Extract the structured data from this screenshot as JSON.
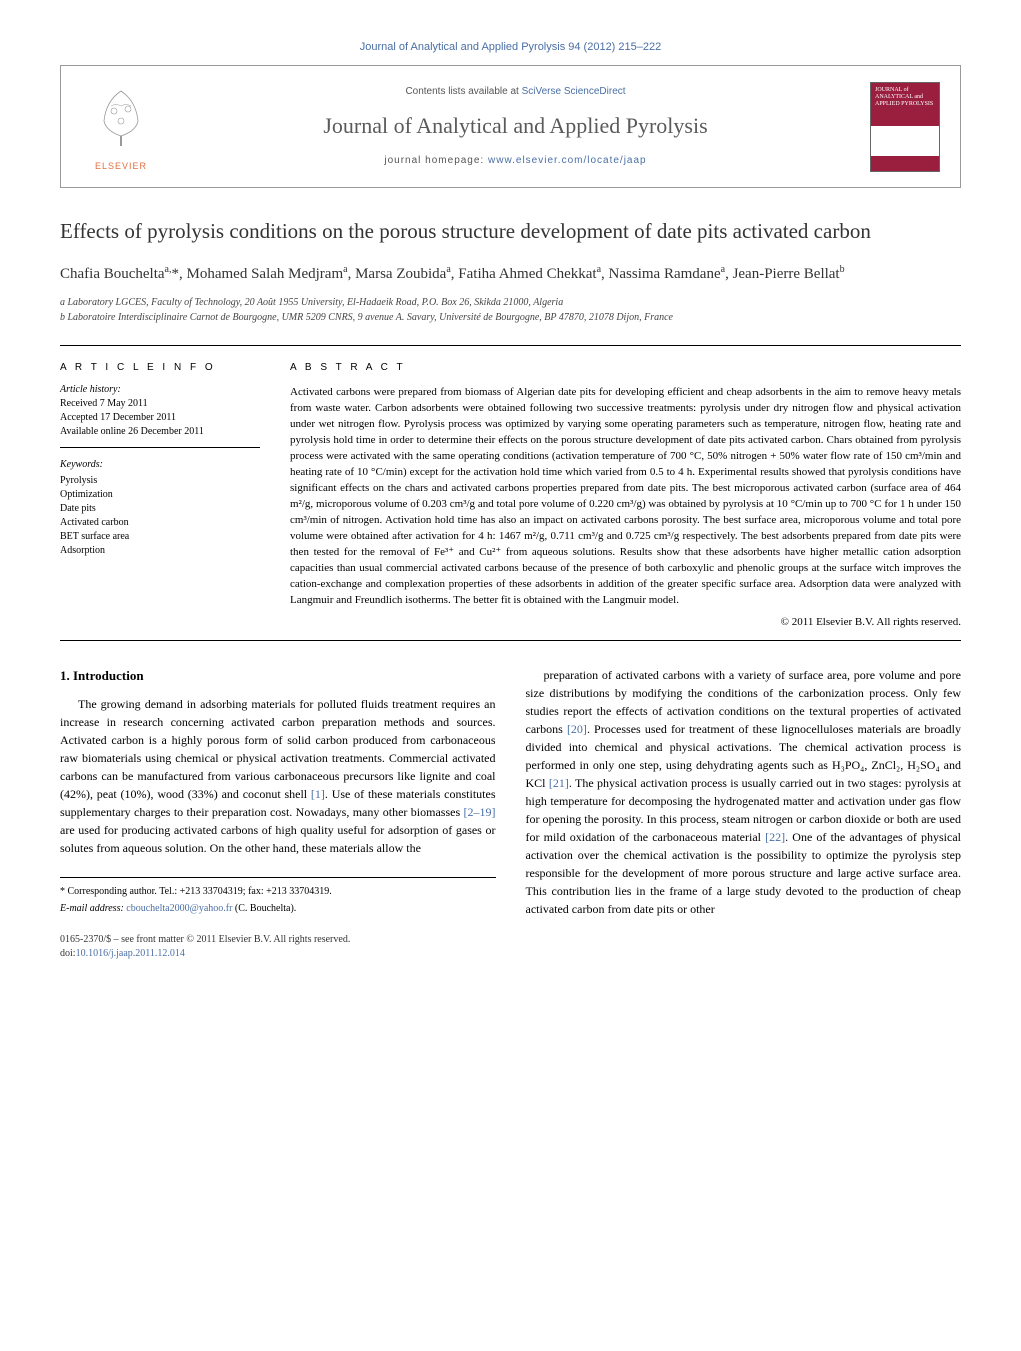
{
  "header": {
    "top_link": "Journal of Analytical and Applied Pyrolysis 94 (2012) 215–222",
    "contents_prefix": "Contents lists available at ",
    "contents_link": "SciVerse ScienceDirect",
    "journal_title": "Journal of Analytical and Applied Pyrolysis",
    "homepage_prefix": "journal homepage: ",
    "homepage_url": "www.elsevier.com/locate/jaap",
    "publisher_brand": "ELSEVIER",
    "cover_text": "JOURNAL of ANALYTICAL and APPLIED PYROLYSIS"
  },
  "colors": {
    "link": "#4a6fa5",
    "brand": "#e07040",
    "cover_bg": "#9a1f3f",
    "text": "#000000",
    "muted": "#555555"
  },
  "article": {
    "title": "Effects of pyrolysis conditions on the porous structure development of date pits activated carbon",
    "authors_html": "Chafia Bouchelta<sup>a,</sup>*, Mohamed Salah Medjram<sup>a</sup>, Marsa Zoubida<sup>a</sup>, Fatiha Ahmed Chekkat<sup>a</sup>, Nassima Ramdane<sup>a</sup>, Jean-Pierre Bellat<sup>b</sup>",
    "affiliations": [
      "a Laboratory LGCES, Faculty of Technology, 20 Août 1955 University, El-Hadaeik Road, P.O. Box 26, Skikda 21000, Algeria",
      "b Laboratoire Interdisciplinaire Carnot de Bourgogne, UMR 5209 CNRS, 9 avenue A. Savary, Université de Bourgogne, BP 47870, 21078 Dijon, France"
    ]
  },
  "info": {
    "heading": "A R T I C L E  I N F O",
    "history_label": "Article history:",
    "history": [
      "Received 7 May 2011",
      "Accepted 17 December 2011",
      "Available online 26 December 2011"
    ],
    "keywords_label": "Keywords:",
    "keywords": [
      "Pyrolysis",
      "Optimization",
      "Date pits",
      "Activated carbon",
      "BET surface area",
      "Adsorption"
    ]
  },
  "abstract": {
    "heading": "A B S T R A C T",
    "text": "Activated carbons were prepared from biomass of Algerian date pits for developing efficient and cheap adsorbents in the aim to remove heavy metals from waste water. Carbon adsorbents were obtained following two successive treatments: pyrolysis under dry nitrogen flow and physical activation under wet nitrogen flow. Pyrolysis process was optimized by varying some operating parameters such as temperature, nitrogen flow, heating rate and pyrolysis hold time in order to determine their effects on the porous structure development of date pits activated carbon. Chars obtained from pyrolysis process were activated with the same operating conditions (activation temperature of 700 °C, 50% nitrogen + 50% water flow rate of 150 cm³/min and heating rate of 10 °C/min) except for the activation hold time which varied from 0.5 to 4 h. Experimental results showed that pyrolysis conditions have significant effects on the chars and activated carbons properties prepared from date pits. The best microporous activated carbon (surface area of 464 m²/g, microporous volume of 0.203 cm³/g and total pore volume of 0.220 cm³/g) was obtained by pyrolysis at 10 °C/min up to 700 °C for 1 h under 150 cm³/min of nitrogen. Activation hold time has also an impact on activated carbons porosity. The best surface area, microporous volume and total pore volume were obtained after activation for 4 h: 1467 m²/g, 0.711 cm³/g and 0.725 cm³/g respectively. The best adsorbents prepared from date pits were then tested for the removal of Fe³⁺ and Cu²⁺ from aqueous solutions. Results show that these adsorbents have higher metallic cation adsorption capacities than usual commercial activated carbons because of the presence of both carboxylic and phenolic groups at the surface witch improves the cation-exchange and complexation properties of these adsorbents in addition of the greater specific surface area. Adsorption data were analyzed with Langmuir and Freundlich isotherms. The better fit is obtained with the Langmuir model.",
    "copyright": "© 2011 Elsevier B.V. All rights reserved."
  },
  "body": {
    "section_heading": "1. Introduction",
    "col1": "The growing demand in adsorbing materials for polluted fluids treatment requires an increase in research concerning activated carbon preparation methods and sources. Activated carbon is a highly porous form of solid carbon produced from carbonaceous raw biomaterials using chemical or physical activation treatments. Commercial activated carbons can be manufactured from various carbonaceous precursors like lignite and coal (42%), peat (10%), wood (33%) and coconut shell [1]. Use of these materials constitutes supplementary charges to their preparation cost. Nowadays, many other biomasses [2–19] are used for producing activated carbons of high quality useful for adsorption of gases or solutes from aqueous solution. On the other hand, these materials allow the",
    "col2": "preparation of activated carbons with a variety of surface area, pore volume and pore size distributions by modifying the conditions of the carbonization process. Only few studies report the effects of activation conditions on the textural properties of activated carbons [20]. Processes used for treatment of these lignocelluloses materials are broadly divided into chemical and physical activations. The chemical activation process is performed in only one step, using dehydrating agents such as H₃PO₄, ZnCl₂, H₂SO₄ and KCl [21]. The physical activation process is usually carried out in two stages: pyrolysis at high temperature for decomposing the hydrogenated matter and activation under gas flow for opening the porosity. In this process, steam nitrogen or carbon dioxide or both are used for mild oxidation of the carbonaceous material [22]. One of the advantages of physical activation over the chemical activation is the possibility to optimize the pyrolysis step responsible for the development of more porous structure and large active surface area. This contribution lies in the frame of a large study devoted to the production of cheap activated carbon from date pits or other",
    "refs": {
      "ref1": "[1]",
      "ref2_19": "[2–19]",
      "ref20": "[20]",
      "ref21": "[21]",
      "ref22": "[22]"
    }
  },
  "footer": {
    "corresponding": "* Corresponding author. Tel.: +213 33704319; fax: +213 33704319.",
    "email_label": "E-mail address: ",
    "email": "cbouchelta2000@yahoo.fr",
    "email_suffix": " (C. Bouchelta).",
    "issn_line": "0165-2370/$ – see front matter © 2011 Elsevier B.V. All rights reserved.",
    "doi_prefix": "doi:",
    "doi": "10.1016/j.jaap.2011.12.014"
  }
}
